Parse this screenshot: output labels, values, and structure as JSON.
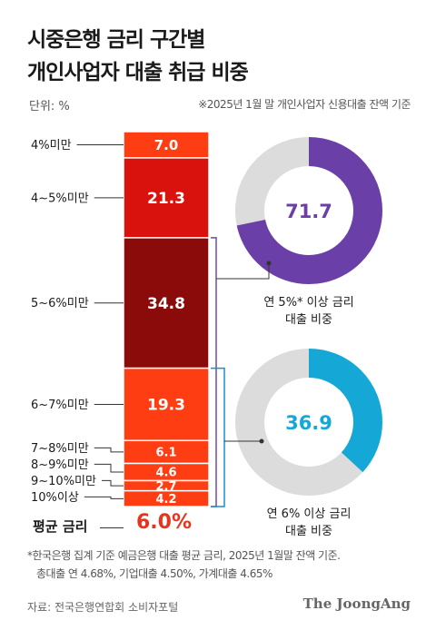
{
  "title": {
    "line1": "시중은행 금리 구간별",
    "line2": "개인사업자 대출 취급 비중"
  },
  "unit_label": "단위: %",
  "base_note": "※2025년 1월 말 개인사업자 신용대출 잔액 기준",
  "average": {
    "label": "평균 금리",
    "value": "6.0%"
  },
  "footnote": {
    "line1": "*한국은행 집계 기준 예금은행 대출 평균 금리, 2025년 1월말 잔액 기준.",
    "line2": "총대출 연 4.68%, 기업대출 4.50%, 가계대출 4.65%"
  },
  "source": "자료: 전국은행연합회 소비자포털",
  "logo": "The JoongAng",
  "colors": {
    "bar_dark": "#8b0a0a",
    "bar_red": "#d9120e",
    "bar_orange": "#ff3d12",
    "donut_track": "#dcdcdc",
    "donut_purple": "#6b3fa8",
    "donut_blue": "#15a8d6",
    "bracket_purple": "#6b4fa8",
    "bracket_blue": "#1a8fcf",
    "accent": "#e8341c"
  },
  "chart_data": [
    {
      "type": "bar",
      "stacked": true,
      "orientation": "vertical",
      "categories": [
        "4%미만",
        "4~5%미만",
        "5~6%미만",
        "6~7%미만",
        "7~8%미만",
        "8~9%미만",
        "9~10%미만",
        "10%이상"
      ],
      "values": [
        7.0,
        21.3,
        34.8,
        19.3,
        6.1,
        4.6,
        2.7,
        4.2
      ],
      "labels": [
        "7.0",
        "21.3",
        "34.8",
        "19.3",
        "6.1",
        "4.6",
        "2.7",
        "4.2"
      ],
      "colors": [
        "#ff3d12",
        "#d9120e",
        "#8b0a0a",
        "#ff3d12",
        "#ff3d12",
        "#ff3d12",
        "#ff3d12",
        "#ff3d12"
      ],
      "unit": "%"
    },
    {
      "type": "pie",
      "donut": true,
      "value": 71.7,
      "label": "71.7",
      "caption_line1": "연 5%* 이상 금리",
      "caption_line2": "대출 비중",
      "color": "#6b3fa8"
    },
    {
      "type": "pie",
      "donut": true,
      "value": 36.9,
      "label": "36.9",
      "caption_line1": "연 6% 이상 금리",
      "caption_line2": "대출 비중",
      "color": "#15a8d6"
    }
  ]
}
